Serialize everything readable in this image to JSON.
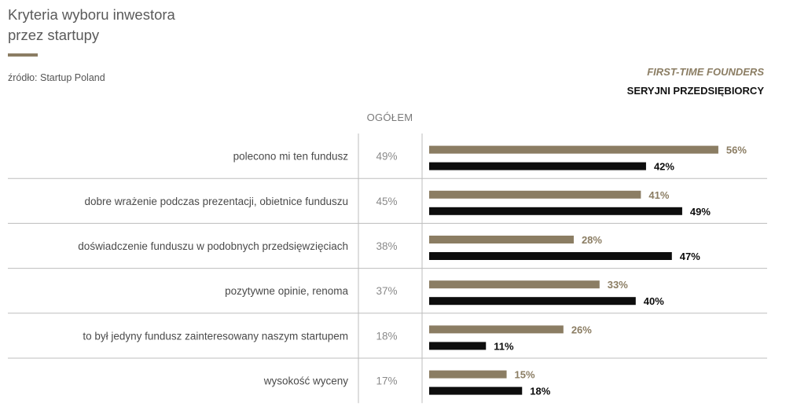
{
  "header": {
    "title_line1": "Kryteria wyboru inwestora",
    "title_line2": "przez startupy",
    "source": "źródło: Startup Poland"
  },
  "legend": {
    "first_time": "FIRST-TIME FOUNDERS",
    "serial": "SERYJNI PRZEDSIĘBIORCY"
  },
  "overall_header": "OGÓŁEM",
  "colors": {
    "first_time": "#8b7d63",
    "serial": "#0d0d0d",
    "grid": "#bdbdbd",
    "label": "#4a4a4a",
    "overall": "#8a8a8a"
  },
  "chart_data": {
    "type": "bar",
    "orientation": "horizontal",
    "title": "Kryteria wyboru inwestora przez startupy",
    "categories": [
      "polecono mi ten fundusz",
      "dobre wrażenie podczas prezentacji, obietnice funduszu",
      "doświadczenie funduszu w podobnych przedsięwzięciach",
      "pozytywne opinie, renoma",
      "to był jedyny fundusz zainteresowany naszym startupem",
      "wysokość wyceny"
    ],
    "overall": [
      49,
      45,
      38,
      37,
      18,
      17
    ],
    "overall_labels": [
      "49%",
      "45%",
      "38%",
      "37%",
      "18%",
      "17%"
    ],
    "series": [
      {
        "name": "FIRST-TIME FOUNDERS",
        "values": [
          56,
          41,
          28,
          33,
          26,
          15
        ],
        "labels": [
          "56%",
          "41%",
          "28%",
          "33%",
          "26%",
          "15%"
        ]
      },
      {
        "name": "SERYJNI PRZEDSIĘBIORCY",
        "values": [
          42,
          49,
          47,
          40,
          11,
          18
        ],
        "labels": [
          "42%",
          "49%",
          "47%",
          "40%",
          "11%",
          "18%"
        ]
      }
    ],
    "unit": "%",
    "legend_position": "top-right"
  }
}
